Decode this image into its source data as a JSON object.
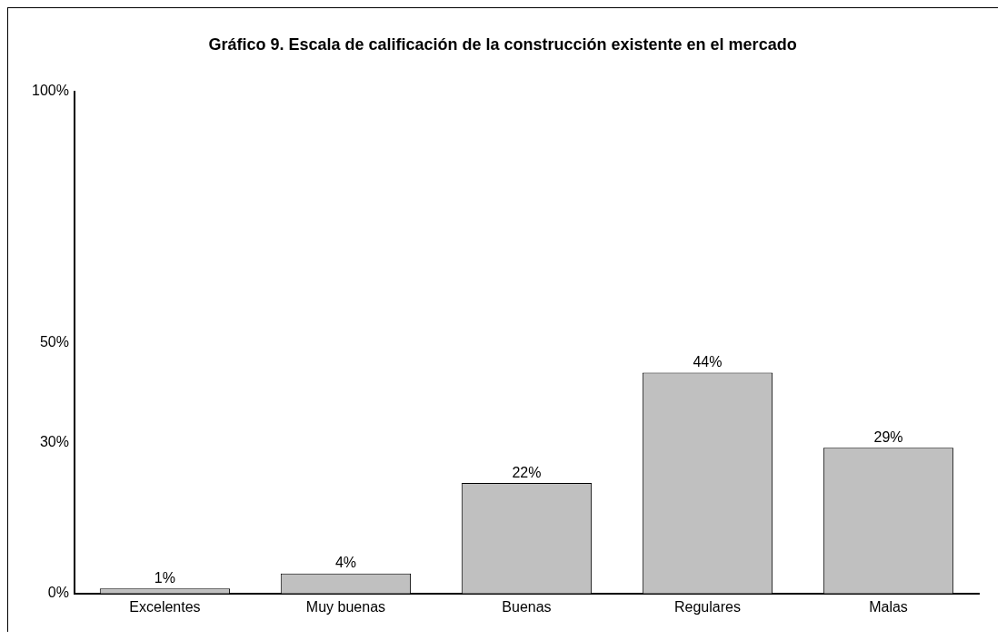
{
  "chart_data": {
    "type": "bar",
    "title": "Gráfico 9. Escala de calificación de la construcción existente en el mercado",
    "categories": [
      "Excelentes",
      "Muy buenas",
      "Buenas",
      "Regulares",
      "Malas"
    ],
    "values": [
      1,
      4,
      22,
      44,
      29
    ],
    "color": "#c0c0c0",
    "ylim": [
      0,
      100
    ],
    "yticks": [
      {
        "value": 0,
        "label": "0%"
      },
      {
        "value": 30,
        "label": "30%"
      },
      {
        "value": 50,
        "label": "50%"
      },
      {
        "value": 100,
        "label": "100%"
      }
    ],
    "value_labels": [
      "1%",
      "4%",
      "22%",
      "44%",
      "29%"
    ],
    "grid": false,
    "legend": false
  }
}
